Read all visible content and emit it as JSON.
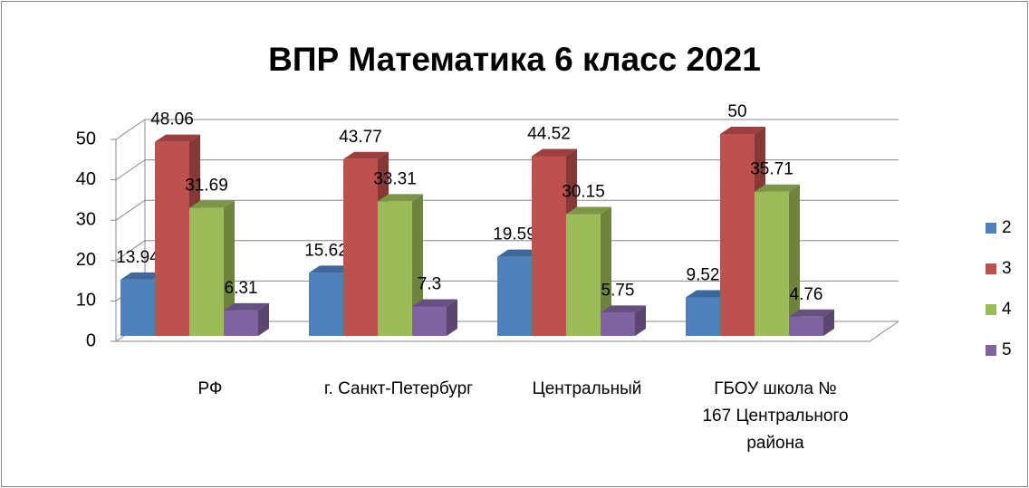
{
  "chart_data": {
    "type": "bar3d",
    "title": "ВПР Математика 6 класс 2021",
    "categories": [
      "РФ",
      "г. Санкт-Петербург",
      "Центральный",
      "ГБОУ школа № 167 Центрального района"
    ],
    "series": [
      {
        "name": "2",
        "color": "#4f81bd",
        "values": [
          13.94,
          15.62,
          19.59,
          9.52
        ]
      },
      {
        "name": "3",
        "color": "#c0504d",
        "values": [
          48.06,
          43.77,
          44.52,
          50
        ]
      },
      {
        "name": "4",
        "color": "#9bbb59",
        "values": [
          31.69,
          33.31,
          30.15,
          35.71
        ]
      },
      {
        "name": "5",
        "color": "#8064a2",
        "values": [
          6.31,
          7.3,
          5.75,
          4.76
        ]
      }
    ],
    "ylim": [
      0,
      50
    ],
    "yticks": [
      0,
      10,
      20,
      30,
      40,
      50
    ],
    "grid": true,
    "legend": "right"
  }
}
